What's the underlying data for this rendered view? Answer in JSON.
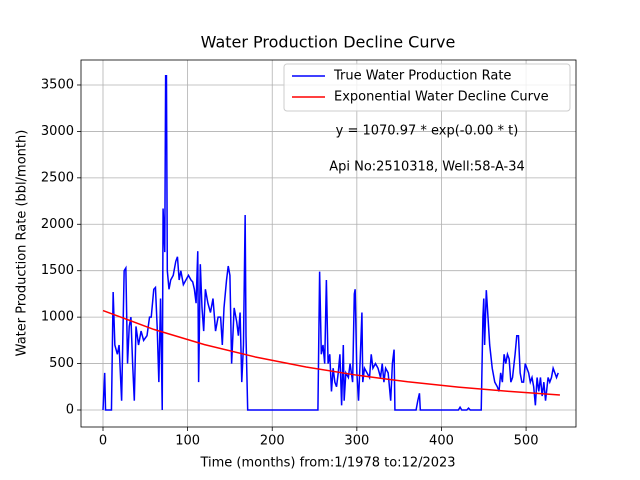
{
  "chart_data": {
    "type": "line",
    "title": "Water Production Decline Curve",
    "x_label": "Time (months) from:1/1978 to:12/2023",
    "y_label": "Water Production Rate (bbl/month)",
    "annotations": [
      "y = 1070.97 * exp(-0.00 * t)",
      "Api No:2510318, Well:58-A-34"
    ],
    "xlim": [
      -26,
      559
    ],
    "ylim": [
      -183,
      3769
    ],
    "xticks": [
      0,
      100,
      200,
      300,
      400,
      500
    ],
    "yticks": [
      0,
      500,
      1000,
      1500,
      2000,
      2500,
      3000,
      3500
    ],
    "grid": true,
    "legend": "upper right",
    "series": [
      {
        "name": "True Water Production Rate",
        "color": "#0000ff",
        "x": [
          0,
          2,
          3,
          10,
          12,
          14,
          17,
          19,
          22,
          25,
          27,
          29,
          31,
          33,
          35,
          37,
          39,
          42,
          45,
          48,
          52,
          55,
          57,
          60,
          62,
          64,
          66,
          68,
          70,
          71,
          73,
          74,
          75,
          76,
          78,
          80,
          83,
          86,
          88,
          90,
          92,
          95,
          98,
          101,
          104,
          106,
          108,
          110,
          112,
          113,
          115,
          117,
          119,
          121,
          124,
          127,
          130,
          133,
          136,
          139,
          141,
          143,
          146,
          148,
          150,
          152,
          155,
          158,
          160,
          162,
          164,
          166,
          168,
          169,
          171,
          190,
          220,
          254,
          256,
          258,
          260,
          262,
          264,
          266,
          268,
          270,
          272,
          274,
          276,
          278,
          280,
          282,
          284,
          285,
          287,
          290,
          292,
          295,
          297,
          298,
          300,
          302,
          304,
          306,
          307,
          309,
          312,
          315,
          317,
          319,
          322,
          325,
          328,
          330,
          332,
          334,
          337,
          340,
          342,
          344,
          345,
          370,
          372,
          374,
          375,
          420,
          422,
          424,
          430,
          432,
          434,
          447,
          449,
          450,
          451,
          453,
          455,
          457,
          460,
          463,
          466,
          468,
          470,
          472,
          474,
          476,
          478,
          480,
          482,
          484,
          487,
          489,
          491,
          493,
          495,
          497,
          499,
          501,
          503,
          505,
          507,
          509,
          511,
          513,
          515,
          517,
          519,
          521,
          523,
          526,
          528,
          530,
          532,
          534,
          536,
          538
        ],
        "values": [
          0,
          400,
          0,
          0,
          1270,
          700,
          600,
          700,
          100,
          1500,
          1530,
          500,
          900,
          1000,
          500,
          100,
          900,
          700,
          850,
          750,
          800,
          1000,
          1000,
          1300,
          1320,
          900,
          300,
          1200,
          0,
          2170,
          1700,
          3600,
          3600,
          1500,
          1300,
          1400,
          1450,
          1600,
          1650,
          1400,
          1500,
          1350,
          1400,
          1450,
          1400,
          1380,
          1300,
          1150,
          1710,
          300,
          1570,
          1100,
          850,
          1300,
          1150,
          1050,
          1200,
          850,
          1000,
          1000,
          700,
          1100,
          1400,
          1550,
          1450,
          500,
          1100,
          950,
          800,
          1050,
          300,
          700,
          2100,
          800,
          0,
          0,
          0,
          0,
          1490,
          600,
          700,
          500,
          1400,
          500,
          600,
          200,
          450,
          300,
          250,
          400,
          600,
          50,
          700,
          100,
          400,
          350,
          500,
          300,
          1250,
          1300,
          400,
          100,
          550,
          1050,
          300,
          450,
          400,
          350,
          600,
          450,
          500,
          450,
          350,
          500,
          300,
          450,
          400,
          100,
          500,
          650,
          0,
          0,
          100,
          180,
          0,
          0,
          30,
          0,
          0,
          20,
          0,
          0,
          1000,
          1200,
          700,
          1290,
          1000,
          700,
          450,
          300,
          250,
          200,
          400,
          300,
          600,
          500,
          600,
          550,
          300,
          350,
          600,
          800,
          800,
          400,
          300,
          300,
          500,
          450,
          400,
          300,
          350,
          250,
          50,
          350,
          200,
          350,
          150,
          300,
          100,
          350,
          300,
          350,
          450,
          400,
          350,
          400
        ]
      },
      {
        "name": "Exponential Water Decline Curve",
        "color": "#ff0000",
        "x": [
          0,
          60,
          120,
          180,
          240,
          300,
          360,
          420,
          480,
          540
        ],
        "values": [
          1071,
          868,
          704,
          571,
          463,
          375,
          304,
          247,
          200,
          162
        ]
      }
    ]
  }
}
